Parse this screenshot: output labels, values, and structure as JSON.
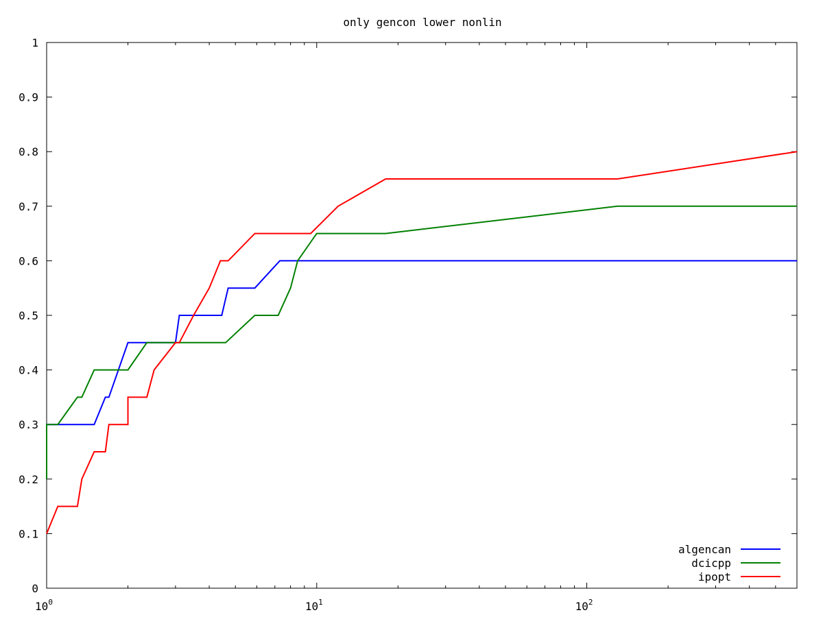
{
  "chart_data": {
    "type": "line",
    "title": "only gencon lower nonlin",
    "xlabel": "",
    "ylabel": "",
    "xscale": "log",
    "xlim": [
      1,
      600
    ],
    "ylim": [
      0,
      1
    ],
    "grid": false,
    "legend_position": "bottom-right",
    "x_tick_labels": [
      {
        "value": 1,
        "base": "10",
        "exp": "0"
      },
      {
        "value": 10,
        "base": "10",
        "exp": "1"
      },
      {
        "value": 100,
        "base": "10",
        "exp": "2"
      }
    ],
    "y_tick_labels": [
      "0",
      "0.1",
      "0.2",
      "0.3",
      "0.4",
      "0.5",
      "0.6",
      "0.7",
      "0.8",
      "0.9",
      "1"
    ],
    "y_tick_values": [
      0,
      0.1,
      0.2,
      0.3,
      0.4,
      0.5,
      0.6,
      0.7,
      0.8,
      0.9,
      1
    ],
    "series": [
      {
        "name": "algencan",
        "color": "#0000ff",
        "points": [
          [
            1,
            0.2
          ],
          [
            1,
            0.3
          ],
          [
            1.5,
            0.3
          ],
          [
            1.65,
            0.35
          ],
          [
            1.7,
            0.35
          ],
          [
            2,
            0.45
          ],
          [
            3,
            0.45
          ],
          [
            3.1,
            0.5
          ],
          [
            4.45,
            0.5
          ],
          [
            4.7,
            0.55
          ],
          [
            5.9,
            0.55
          ],
          [
            7.3,
            0.6
          ],
          [
            600,
            0.6
          ]
        ]
      },
      {
        "name": "dcicpp",
        "color": "#008000",
        "points": [
          [
            1,
            0.2
          ],
          [
            1,
            0.3
          ],
          [
            1.1,
            0.3
          ],
          [
            1.3,
            0.35
          ],
          [
            1.35,
            0.35
          ],
          [
            1.5,
            0.4
          ],
          [
            2,
            0.4
          ],
          [
            2.35,
            0.45
          ],
          [
            4.6,
            0.45
          ],
          [
            5.9,
            0.5
          ],
          [
            7.2,
            0.5
          ],
          [
            8,
            0.55
          ],
          [
            8.5,
            0.6
          ],
          [
            10,
            0.65
          ],
          [
            18,
            0.65
          ],
          [
            130,
            0.7
          ],
          [
            600,
            0.7
          ]
        ]
      },
      {
        "name": "ipopt",
        "color": "#ff0000",
        "points": [
          [
            1,
            0.1
          ],
          [
            1.1,
            0.15
          ],
          [
            1.3,
            0.15
          ],
          [
            1.35,
            0.2
          ],
          [
            1.5,
            0.25
          ],
          [
            1.65,
            0.25
          ],
          [
            1.7,
            0.3
          ],
          [
            2,
            0.3
          ],
          [
            2,
            0.35
          ],
          [
            2.35,
            0.35
          ],
          [
            2.5,
            0.4
          ],
          [
            3,
            0.45
          ],
          [
            3.1,
            0.45
          ],
          [
            3.5,
            0.5
          ],
          [
            4,
            0.55
          ],
          [
            4.4,
            0.6
          ],
          [
            4.7,
            0.6
          ],
          [
            5.9,
            0.65
          ],
          [
            9.5,
            0.65
          ],
          [
            12,
            0.7
          ],
          [
            18,
            0.75
          ],
          [
            130,
            0.75
          ],
          [
            600,
            0.8
          ]
        ]
      }
    ]
  }
}
